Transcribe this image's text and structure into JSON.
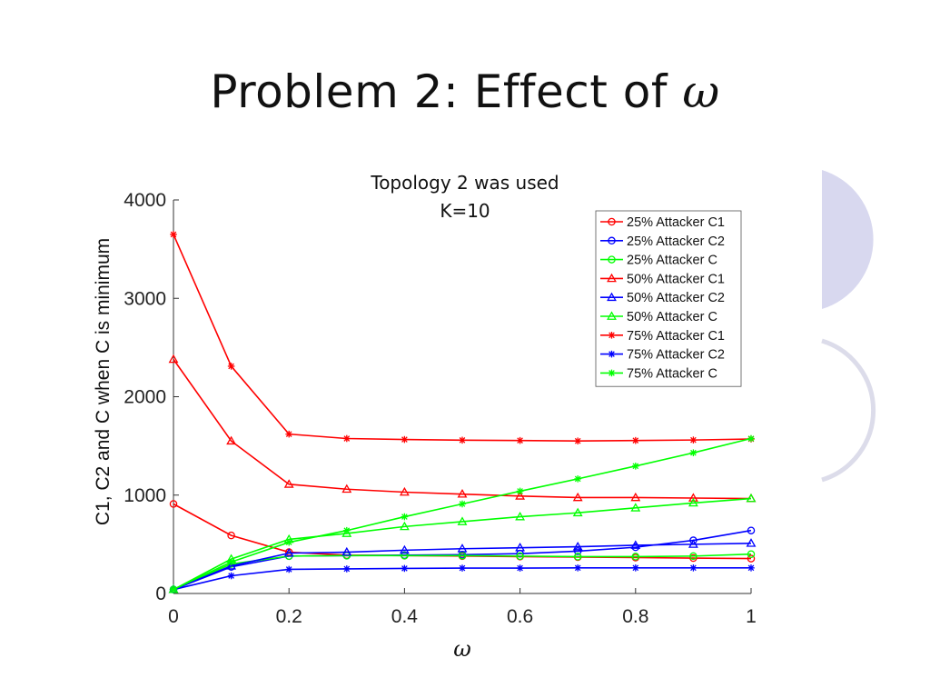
{
  "slide": {
    "title_text": "Problem 2: Effect of ",
    "title_symbol": "ω"
  },
  "colors": {
    "red": "#ff0000",
    "blue": "#0000ff",
    "green": "#00ff00",
    "deco": "#d8d8ef"
  },
  "chart_data": {
    "type": "line",
    "subtitle": [
      "Topology 2 was used",
      "K=10"
    ],
    "xlabel": "ω",
    "ylabel": "C1, C2 and C when C is minimum",
    "xlim": [
      0,
      1
    ],
    "ylim": [
      0,
      4000
    ],
    "xticks": [
      "0",
      "0.2",
      "0.4",
      "0.6",
      "0.8",
      "1"
    ],
    "yticks": [
      "0",
      "1000",
      "2000",
      "3000",
      "4000"
    ],
    "grid": false,
    "legend_position": "top-right",
    "x": [
      0,
      0.1,
      0.2,
      0.3,
      0.4,
      0.5,
      0.6,
      0.7,
      0.8,
      0.9,
      1.0
    ],
    "series": [
      {
        "name": "25% Attacker C1",
        "color": "red",
        "marker": "circle",
        "values": [
          910,
          590,
          420,
          390,
          385,
          380,
          375,
          370,
          365,
          360,
          355
        ]
      },
      {
        "name": "25% Attacker C2",
        "color": "blue",
        "marker": "circle",
        "values": [
          40,
          270,
          380,
          385,
          390,
          395,
          405,
          430,
          470,
          540,
          640
        ]
      },
      {
        "name": "25% Attacker C",
        "color": "green",
        "marker": "circle",
        "values": [
          40,
          300,
          380,
          385,
          385,
          385,
          380,
          375,
          375,
          380,
          400
        ]
      },
      {
        "name": "50% Attacker C1",
        "color": "red",
        "marker": "triangle",
        "values": [
          2380,
          1550,
          1110,
          1060,
          1030,
          1010,
          990,
          975,
          975,
          970,
          965
        ]
      },
      {
        "name": "50% Attacker C2",
        "color": "blue",
        "marker": "triangle",
        "values": [
          40,
          280,
          410,
          420,
          440,
          455,
          465,
          475,
          490,
          500,
          510
        ]
      },
      {
        "name": "50% Attacker C",
        "color": "green",
        "marker": "triangle",
        "values": [
          40,
          350,
          550,
          610,
          680,
          730,
          780,
          820,
          870,
          920,
          965
        ]
      },
      {
        "name": "75% Attacker C1",
        "color": "red",
        "marker": "star",
        "values": [
          3650,
          2310,
          1620,
          1575,
          1565,
          1558,
          1555,
          1550,
          1555,
          1560,
          1570
        ]
      },
      {
        "name": "75% Attacker C2",
        "color": "blue",
        "marker": "star",
        "values": [
          40,
          180,
          245,
          250,
          255,
          258,
          258,
          260,
          260,
          260,
          260
        ]
      },
      {
        "name": "75% Attacker C",
        "color": "green",
        "marker": "star",
        "values": [
          40,
          320,
          520,
          640,
          780,
          910,
          1040,
          1165,
          1295,
          1430,
          1575
        ]
      }
    ]
  }
}
